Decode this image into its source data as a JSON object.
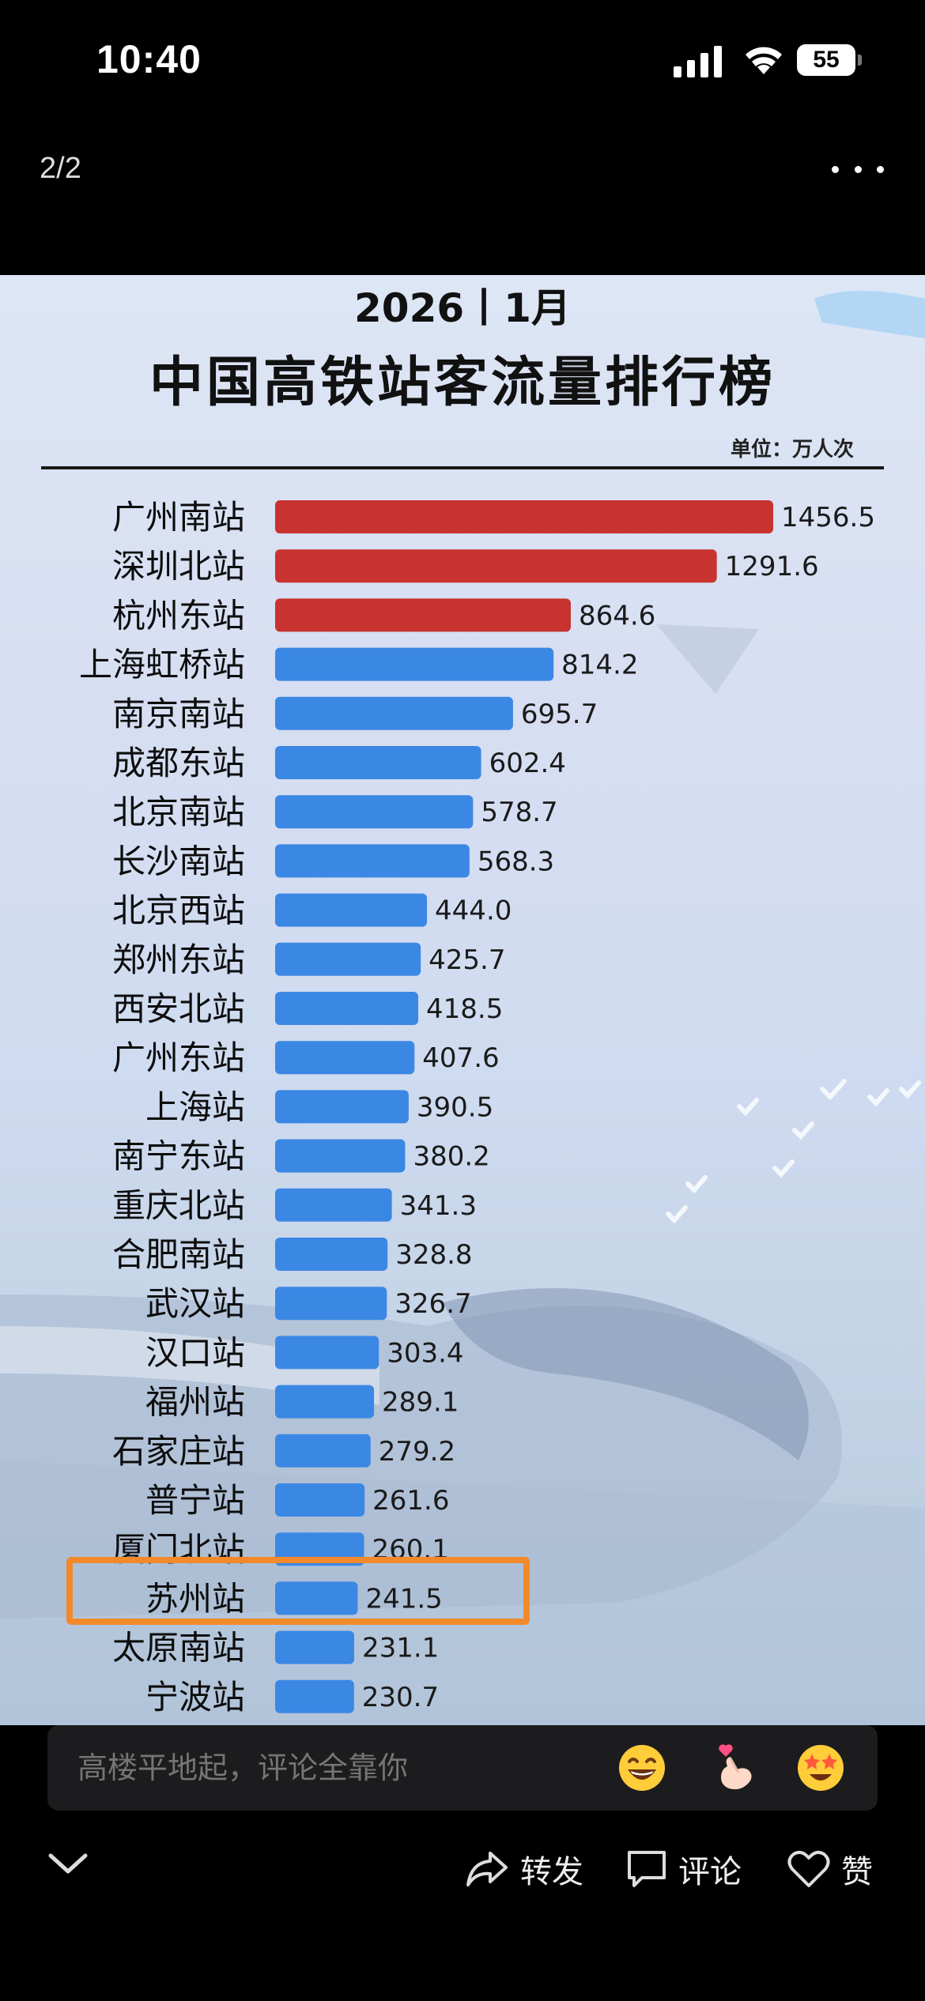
{
  "status_bar": {
    "time": "10:40",
    "battery": "55"
  },
  "viewer": {
    "page_counter": "2/2"
  },
  "image": {
    "year_month": "2026丨1月",
    "title": "中国高铁站客流量排行榜",
    "unit": "单位：万人次",
    "colors": {
      "top3": "#c8332f",
      "others": "#3b87e4",
      "highlight": "#f28a2c"
    },
    "highlighted_station": "苏州站"
  },
  "chart_data": {
    "type": "bar",
    "orientation": "horizontal",
    "title": "中国高铁站客流量排行榜",
    "subtitle": "2026丨1月",
    "unit": "单位：万人次",
    "categories": [
      "广州南站",
      "深圳北站",
      "杭州东站",
      "上海虹桥站",
      "南京南站",
      "成都东站",
      "北京南站",
      "长沙南站",
      "北京西站",
      "郑州东站",
      "西安北站",
      "广州东站",
      "上海站",
      "南宁东站",
      "重庆北站",
      "合肥南站",
      "武汉站",
      "汉口站",
      "福州站",
      "石家庄站",
      "普宁站",
      "厦门北站",
      "苏州站",
      "太原南站",
      "宁波站"
    ],
    "values": [
      1456.5,
      1291.6,
      864.6,
      814.2,
      695.7,
      602.4,
      578.7,
      568.3,
      444.0,
      425.7,
      418.5,
      407.6,
      390.5,
      380.2,
      341.3,
      328.8,
      326.7,
      303.4,
      289.1,
      279.2,
      261.6,
      260.1,
      241.5,
      231.1,
      230.7
    ],
    "labels": [
      "1456.5",
      "1291.6",
      "864.6",
      "814.2",
      "695.7",
      "602.4",
      "578.7",
      "568.3",
      "444.0",
      "425.7",
      "418.5",
      "407.6",
      "390.5",
      "380.2",
      "341.3",
      "328.8",
      "326.7",
      "303.4",
      "289.1",
      "279.2",
      "261.6",
      "260.1",
      "241.5",
      "231.1",
      "230.7"
    ],
    "grid": false,
    "legend": "none"
  },
  "comment_bar": {
    "placeholder": "高楼平地起，评论全靠你"
  },
  "emojis": [
    "grinning-emoji",
    "finger-heart-emoji",
    "star-eyes-emoji"
  ],
  "actions": {
    "share": "转发",
    "comment": "评论",
    "like": "赞"
  }
}
